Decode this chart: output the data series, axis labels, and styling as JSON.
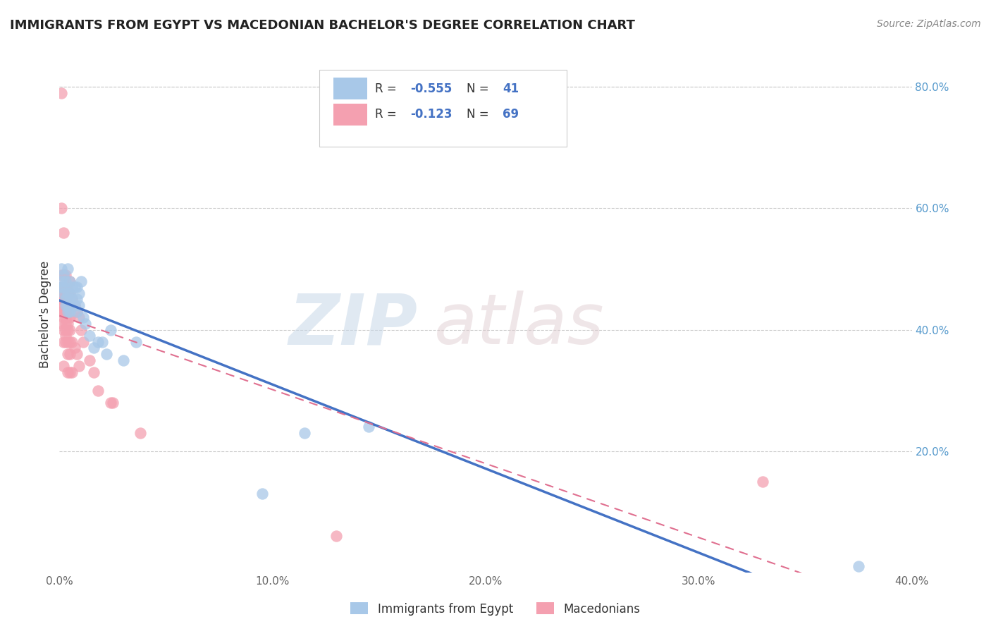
{
  "title": "IMMIGRANTS FROM EGYPT VS MACEDONIAN BACHELOR'S DEGREE CORRELATION CHART",
  "source": "Source: ZipAtlas.com",
  "ylabel": "Bachelor's Degree",
  "xlim": [
    0.0,
    0.4
  ],
  "ylim": [
    0.0,
    0.85
  ],
  "xtick_labels": [
    "0.0%",
    "10.0%",
    "20.0%",
    "30.0%",
    "40.0%"
  ],
  "xtick_vals": [
    0.0,
    0.1,
    0.2,
    0.3,
    0.4
  ],
  "ytick_labels": [
    "20.0%",
    "40.0%",
    "60.0%",
    "80.0%"
  ],
  "ytick_vals": [
    0.2,
    0.4,
    0.6,
    0.8
  ],
  "blue_R": -0.555,
  "blue_N": 41,
  "pink_R": -0.123,
  "pink_N": 69,
  "blue_color": "#A8C8E8",
  "pink_color": "#F4A0B0",
  "blue_line_color": "#4472C4",
  "pink_line_color": "#E07090",
  "legend_label_blue": "Immigrants from Egypt",
  "legend_label_pink": "Macedonians",
  "blue_x": [
    0.001,
    0.001,
    0.001,
    0.002,
    0.002,
    0.002,
    0.003,
    0.003,
    0.003,
    0.004,
    0.004,
    0.004,
    0.004,
    0.005,
    0.005,
    0.005,
    0.005,
    0.006,
    0.006,
    0.007,
    0.007,
    0.008,
    0.008,
    0.008,
    0.009,
    0.009,
    0.01,
    0.011,
    0.012,
    0.014,
    0.016,
    0.018,
    0.02,
    0.022,
    0.024,
    0.03,
    0.036,
    0.095,
    0.115,
    0.145,
    0.375
  ],
  "blue_y": [
    0.47,
    0.48,
    0.5,
    0.46,
    0.47,
    0.49,
    0.44,
    0.45,
    0.48,
    0.43,
    0.44,
    0.46,
    0.5,
    0.43,
    0.45,
    0.46,
    0.48,
    0.45,
    0.47,
    0.44,
    0.47,
    0.43,
    0.45,
    0.47,
    0.44,
    0.46,
    0.48,
    0.42,
    0.41,
    0.39,
    0.37,
    0.38,
    0.38,
    0.36,
    0.4,
    0.35,
    0.38,
    0.13,
    0.23,
    0.24,
    0.01
  ],
  "pink_x": [
    0.001,
    0.001,
    0.001,
    0.001,
    0.001,
    0.001,
    0.001,
    0.001,
    0.001,
    0.002,
    0.002,
    0.002,
    0.002,
    0.002,
    0.002,
    0.002,
    0.002,
    0.002,
    0.002,
    0.002,
    0.003,
    0.003,
    0.003,
    0.003,
    0.003,
    0.003,
    0.003,
    0.003,
    0.003,
    0.003,
    0.003,
    0.003,
    0.004,
    0.004,
    0.004,
    0.004,
    0.004,
    0.004,
    0.004,
    0.004,
    0.004,
    0.004,
    0.005,
    0.005,
    0.005,
    0.005,
    0.005,
    0.005,
    0.005,
    0.005,
    0.006,
    0.006,
    0.006,
    0.007,
    0.007,
    0.008,
    0.008,
    0.009,
    0.009,
    0.01,
    0.011,
    0.014,
    0.016,
    0.018,
    0.024,
    0.025,
    0.038,
    0.13,
    0.33
  ],
  "pink_y": [
    0.79,
    0.6,
    0.49,
    0.47,
    0.46,
    0.45,
    0.44,
    0.43,
    0.41,
    0.56,
    0.49,
    0.47,
    0.46,
    0.44,
    0.43,
    0.43,
    0.42,
    0.4,
    0.38,
    0.34,
    0.49,
    0.47,
    0.46,
    0.45,
    0.44,
    0.43,
    0.43,
    0.42,
    0.41,
    0.4,
    0.39,
    0.38,
    0.47,
    0.46,
    0.44,
    0.43,
    0.42,
    0.41,
    0.4,
    0.38,
    0.36,
    0.33,
    0.48,
    0.46,
    0.44,
    0.42,
    0.4,
    0.38,
    0.36,
    0.33,
    0.45,
    0.38,
    0.33,
    0.44,
    0.37,
    0.43,
    0.36,
    0.42,
    0.34,
    0.4,
    0.38,
    0.35,
    0.33,
    0.3,
    0.28,
    0.28,
    0.23,
    0.06,
    0.15
  ]
}
